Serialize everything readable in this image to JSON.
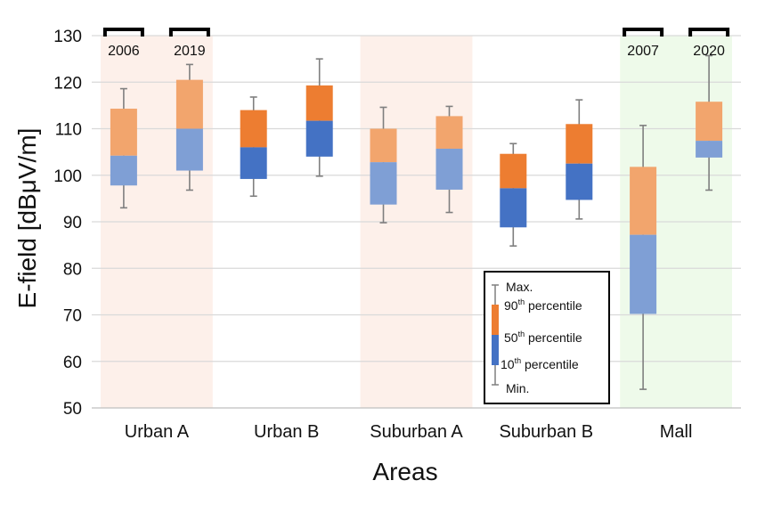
{
  "chart_data": {
    "type": "box",
    "xlabel": "Areas",
    "ylabel": "E-field [dBμV/m]",
    "ylim": [
      50,
      130
    ],
    "yticks": [
      50,
      60,
      70,
      80,
      90,
      100,
      110,
      120,
      130
    ],
    "categories": [
      "Urban A",
      "Urban B",
      "Suburban A",
      "Suburban B",
      "Mall"
    ],
    "year_labels": [
      {
        "category": "Urban A",
        "labels": [
          "2006",
          "2019"
        ]
      },
      {
        "category": "Mall",
        "labels": [
          "2007",
          "2020"
        ]
      }
    ],
    "highlighted_categories": [
      {
        "category": "Urban A",
        "color": "#fdf0ea"
      },
      {
        "category": "Suburban A",
        "color": "#fdf0ea"
      },
      {
        "category": "Mall",
        "color": "#eefaea"
      }
    ],
    "boxes": [
      {
        "category": "Urban A",
        "slot": 0,
        "faded": true,
        "min": 93,
        "p10": 97.8,
        "p50": 104.2,
        "p90": 114.3,
        "max": 118.6
      },
      {
        "category": "Urban A",
        "slot": 1,
        "faded": true,
        "min": 96.8,
        "p10": 101,
        "p50": 110,
        "p90": 120.5,
        "max": 123.8
      },
      {
        "category": "Urban B",
        "slot": 0,
        "faded": false,
        "min": 95.5,
        "p10": 99.2,
        "p50": 106,
        "p90": 114,
        "max": 116.8
      },
      {
        "category": "Urban B",
        "slot": 1,
        "faded": false,
        "min": 99.8,
        "p10": 104,
        "p50": 111.7,
        "p90": 119.3,
        "max": 125
      },
      {
        "category": "Suburban A",
        "slot": 0,
        "faded": true,
        "min": 89.8,
        "p10": 93.7,
        "p50": 102.8,
        "p90": 110,
        "max": 114.6
      },
      {
        "category": "Suburban A",
        "slot": 1,
        "faded": true,
        "min": 92,
        "p10": 96.9,
        "p50": 105.7,
        "p90": 112.7,
        "max": 114.8
      },
      {
        "category": "Suburban B",
        "slot": 0,
        "faded": false,
        "min": 84.8,
        "p10": 88.8,
        "p50": 97.2,
        "p90": 104.6,
        "max": 106.8
      },
      {
        "category": "Suburban B",
        "slot": 1,
        "faded": false,
        "min": 90.6,
        "p10": 94.7,
        "p50": 102.5,
        "p90": 111,
        "max": 116.2
      },
      {
        "category": "Mall",
        "slot": 0,
        "faded": true,
        "min": 54,
        "p10": 70.2,
        "p50": 87.2,
        "p90": 101.8,
        "max": 110.7
      },
      {
        "category": "Mall",
        "slot": 1,
        "faded": true,
        "min": 96.8,
        "p10": 103.8,
        "p50": 107.4,
        "p90": 115.8,
        "max": 125.7
      }
    ],
    "colors": {
      "upper": "#ed7d31",
      "lower": "#4472c4",
      "upper_faded": "#f2a56d",
      "lower_faded": "#7f9fd5",
      "whisker": "#7f7f7f",
      "grid": "#d9d9d9"
    },
    "legend": {
      "placement": "bottom-center",
      "max_label": "Max.",
      "p90_label": "90",
      "p50_label": "50",
      "p10_label": "10",
      "sup": "th",
      "percentile_word": " percentile",
      "min_label": "Min."
    },
    "grid": true
  }
}
